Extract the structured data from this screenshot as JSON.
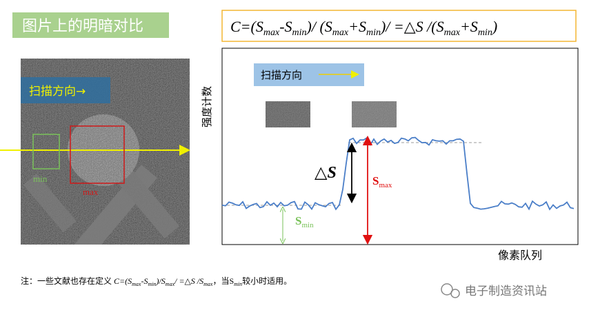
{
  "title": "图片上的明暗对比",
  "formula": [
    "C=(S",
    "max",
    "-S",
    "min",
    ")/ (S",
    "max",
    "+S",
    "min",
    ")/ =△S /(S",
    "max",
    "+S",
    "min",
    ")"
  ],
  "image": {
    "scan_label": "扫描方向→",
    "min_label": "min",
    "max_label": "max"
  },
  "profile": {
    "scan_label": "扫描方向",
    "y_label": "强度计数",
    "x_label": "像素队列",
    "delta": "△S",
    "smax": [
      "S",
      "max"
    ],
    "smin": [
      "S",
      "min"
    ]
  },
  "note": [
    "注：一些文献也存在定义 ",
    "C=(S",
    "max",
    "-S",
    "min",
    ")/S",
    "max",
    "/ =△S /S",
    "max",
    "，当S",
    "min",
    "较小时适用。"
  ],
  "watermark": "电子制造资讯站"
}
